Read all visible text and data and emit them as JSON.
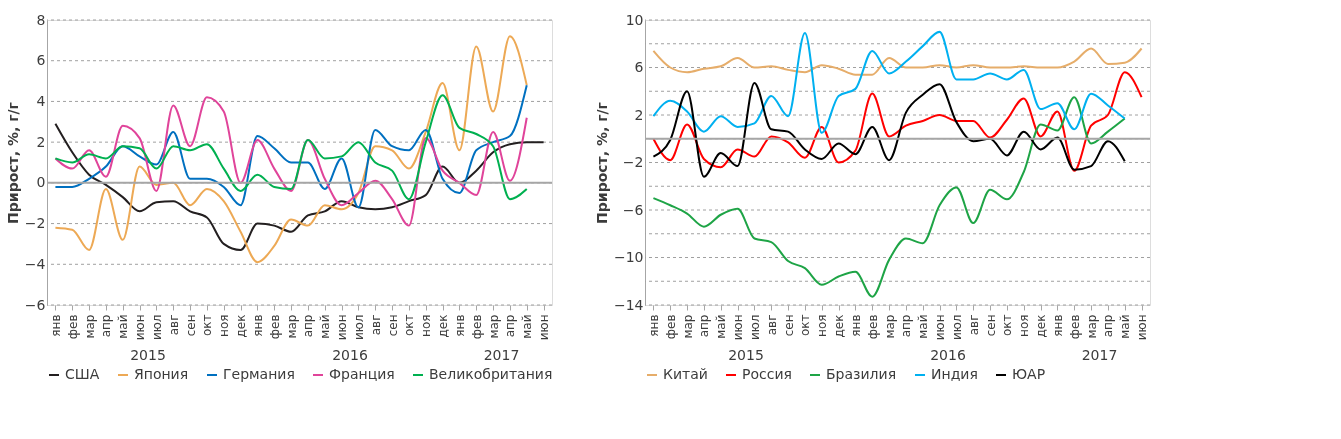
{
  "chart_data": [
    {
      "type": "line",
      "ylabel": "Прирост, %, г/г",
      "categories": [
        "янв",
        "фев",
        "мар",
        "апр",
        "май",
        "июн",
        "июл",
        "авг",
        "сен",
        "окт",
        "ноя",
        "дек",
        "янв",
        "фев",
        "мар",
        "апр",
        "май",
        "июн",
        "июл",
        "авг",
        "сен",
        "окт",
        "ноя",
        "дек",
        "янв",
        "фев",
        "мар",
        "апр",
        "май",
        "июн"
      ],
      "annotations": [
        "2015",
        "2016",
        "2017"
      ],
      "ylim": [
        -6,
        8
      ],
      "yticks": [
        -6,
        -4,
        -2,
        0,
        2,
        4,
        6,
        8
      ],
      "grid": "y",
      "legend": "bottom",
      "ref_lines": [
        {
          "axis": "y",
          "value": 0,
          "color": "#a6a6a6"
        }
      ],
      "series": [
        {
          "name": "США",
          "color": "#231f20",
          "values": [
            2.9,
            1.5,
            0.4,
            -0.1,
            -0.7,
            -1.4,
            -0.95,
            -0.9,
            -1.4,
            -1.7,
            -3.0,
            -3.3,
            -2.0,
            -2.1,
            -2.4,
            -1.6,
            -1.4,
            -0.9,
            -1.2,
            -1.3,
            -1.2,
            -0.9,
            -0.6,
            0.8,
            0.0,
            0.6,
            1.5,
            1.9,
            2.0,
            2.0
          ]
        },
        {
          "name": "Япония",
          "color": "#eda955",
          "values": [
            -2.2,
            -2.3,
            -3.3,
            -0.3,
            -2.8,
            0.8,
            -0.1,
            0.0,
            -1.1,
            -0.3,
            -0.9,
            -2.4,
            -3.9,
            -3.1,
            -1.8,
            -2.1,
            -1.1,
            -1.3,
            -0.5,
            1.8,
            1.6,
            0.7,
            2.5,
            4.9,
            1.6,
            6.7,
            3.5,
            7.2,
            4.8,
            null
          ]
        },
        {
          "name": "Германия",
          "color": "#0070c0",
          "values": [
            -0.2,
            -0.2,
            0.2,
            0.8,
            1.8,
            1.3,
            0.9,
            2.5,
            0.2,
            0.2,
            -0.2,
            -1.1,
            2.3,
            1.7,
            1.0,
            1.0,
            -0.3,
            1.2,
            -1.2,
            2.6,
            1.8,
            1.6,
            2.6,
            0.2,
            -0.5,
            1.6,
            2.0,
            2.3,
            4.8,
            null
          ]
        },
        {
          "name": "Франция",
          "color": "#e0449a",
          "values": [
            1.2,
            0.7,
            1.6,
            0.3,
            2.8,
            2.2,
            -0.4,
            3.8,
            1.8,
            4.2,
            3.5,
            0.0,
            2.1,
            0.7,
            -0.4,
            2.1,
            0.2,
            -1.1,
            -0.5,
            0.1,
            -0.8,
            -2.1,
            2.2,
            0.6,
            0.0,
            -0.6,
            2.5,
            0.1,
            3.2,
            null
          ]
        },
        {
          "name": "Великобритания",
          "color": "#00b050",
          "values": [
            1.2,
            1.0,
            1.4,
            1.2,
            1.8,
            1.7,
            0.7,
            1.8,
            1.6,
            1.9,
            0.7,
            -0.4,
            0.4,
            -0.2,
            -0.3,
            2.1,
            1.2,
            1.3,
            2.0,
            1.0,
            0.6,
            -0.8,
            2.0,
            4.3,
            2.7,
            2.4,
            1.8,
            -0.8,
            -0.3,
            null
          ]
        }
      ]
    },
    {
      "type": "line",
      "ylabel": "Прирост, %, г/г",
      "categories": [
        "янв",
        "фев",
        "мар",
        "апр",
        "май",
        "июн",
        "июл",
        "авг",
        "сен",
        "окт",
        "ноя",
        "дек",
        "янв",
        "фев",
        "мар",
        "апр",
        "май",
        "июн",
        "июл",
        "авг",
        "сен",
        "окт",
        "ноя",
        "дек",
        "янв",
        "фев",
        "мар",
        "апр",
        "май",
        "июн"
      ],
      "annotations": [
        "2015",
        "2016",
        "2017"
      ],
      "ylim": [
        -14,
        10
      ],
      "yticks": [
        -14,
        {
          "value": -12,
          "label": null
        },
        -10,
        {
          "value": -8,
          "label": null
        },
        -6,
        {
          "value": -4,
          "label": null
        },
        -2,
        {
          "value": 0,
          "label": null
        },
        2,
        {
          "value": 4,
          "label": null
        },
        6,
        {
          "value": 8,
          "label": null
        },
        10
      ],
      "grid": "y",
      "legend": "bottom",
      "ref_lines": [
        {
          "axis": "y",
          "value": 0,
          "color": "#a6a6a6"
        }
      ],
      "series": [
        {
          "name": "Китай",
          "color": "#e6ad6a",
          "values": [
            7.4,
            6.0,
            5.6,
            5.9,
            6.1,
            6.8,
            6.0,
            6.1,
            5.8,
            5.6,
            6.2,
            5.9,
            5.4,
            5.4,
            6.8,
            6.0,
            6.0,
            6.2,
            6.0,
            6.2,
            6.0,
            6.0,
            6.1,
            6.0,
            6.0,
            6.5,
            7.6,
            6.3,
            6.4,
            7.6
          ]
        },
        {
          "name": "Россия",
          "color": "#ff0000",
          "values": [
            0.0,
            -1.8,
            1.2,
            -1.7,
            -2.4,
            -0.9,
            -1.5,
            0.2,
            -0.3,
            -1.6,
            1.0,
            -2.0,
            -1.0,
            3.8,
            0.2,
            1.1,
            1.5,
            2.0,
            1.5,
            1.5,
            0.1,
            1.6,
            3.4,
            0.2,
            2.3,
            -2.7,
            1.1,
            2.0,
            5.6,
            3.5
          ]
        },
        {
          "name": "Бразилия",
          "color": "#1ea446",
          "values": [
            -5.0,
            -5.6,
            -6.3,
            -7.4,
            -6.4,
            -5.9,
            -8.4,
            -8.7,
            -10.3,
            -10.9,
            -12.3,
            -11.6,
            -11.2,
            -13.3,
            -10.2,
            -8.4,
            -8.8,
            -5.6,
            -4.1,
            -7.1,
            -4.3,
            -5.1,
            -2.8,
            1.2,
            0.7,
            3.5,
            -0.4,
            0.6,
            1.7,
            null
          ]
        },
        {
          "name": "Индия",
          "color": "#00b0f0",
          "values": [
            1.9,
            3.2,
            2.3,
            0.6,
            1.9,
            1.0,
            1.3,
            3.6,
            1.9,
            8.9,
            0.5,
            3.6,
            4.2,
            7.4,
            5.5,
            6.5,
            7.8,
            9.0,
            5.0,
            5.0,
            5.5,
            5.0,
            5.8,
            2.5,
            3.0,
            0.8,
            3.8,
            2.8,
            1.7,
            null
          ]
        },
        {
          "name": "ЮАР",
          "color": "#000000",
          "values": [
            -1.5,
            -0.1,
            4.0,
            -3.2,
            -1.2,
            -2.3,
            4.7,
            0.8,
            0.6,
            -0.9,
            -1.7,
            -0.4,
            -1.3,
            1.0,
            -1.8,
            2.2,
            3.7,
            4.6,
            1.4,
            -0.2,
            0.0,
            -1.4,
            0.6,
            -0.9,
            0.1,
            -2.6,
            -2.3,
            -0.2,
            -1.9,
            null
          ]
        }
      ]
    }
  ]
}
